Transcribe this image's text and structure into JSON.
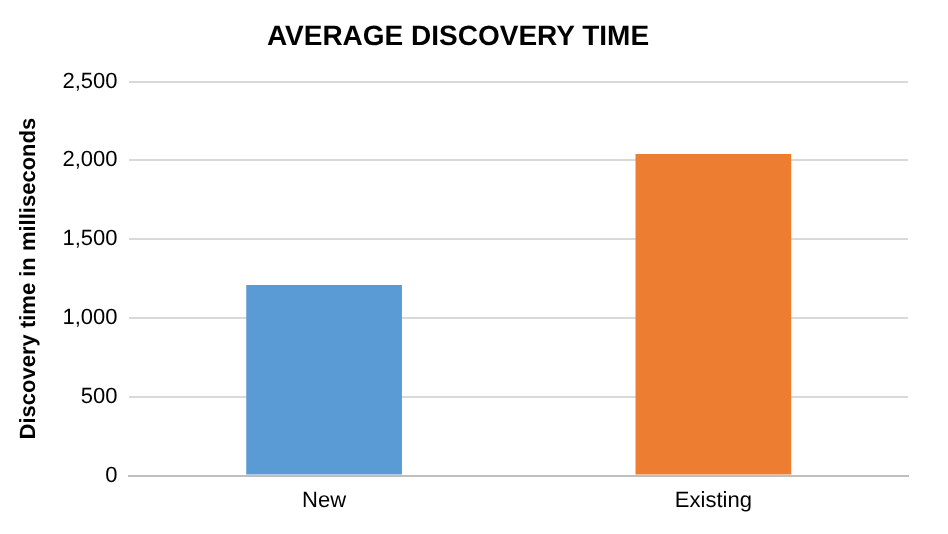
{
  "chart_data": {
    "type": "bar",
    "title": "AVERAGE DISCOVERY TIME",
    "ylabel": "Discovery time in milliseconds",
    "categories": [
      "New",
      "Existing"
    ],
    "values": [
      1210,
      2040
    ],
    "colors": [
      "#5b9bd5",
      "#ed7d31"
    ],
    "ylim": [
      0,
      2500
    ],
    "yticks": [
      0,
      500,
      {
        "value": 1000,
        "label": "1,000"
      },
      {
        "value": 1500,
        "label": "1,500"
      },
      {
        "value": 2000,
        "label": "2,000"
      },
      {
        "value": 2500,
        "label": "2,500"
      }
    ],
    "grid": "y",
    "legend": false
  }
}
